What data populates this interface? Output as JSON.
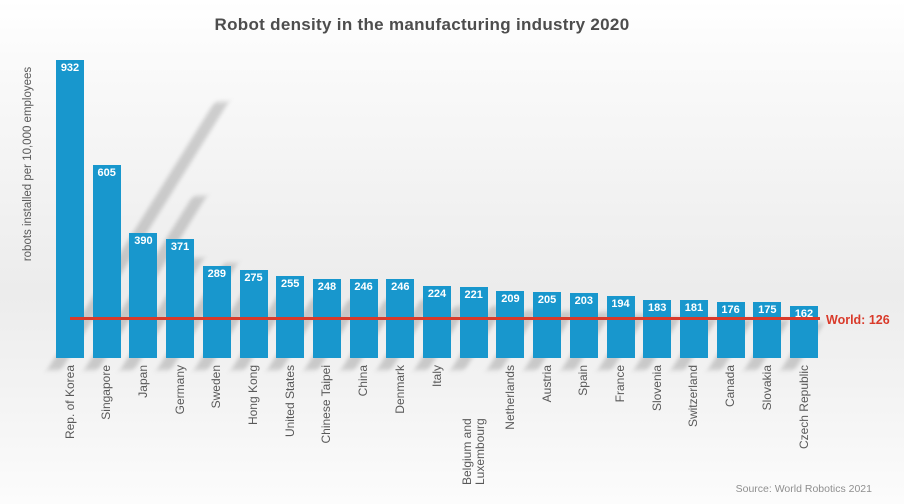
{
  "slide": {
    "title": "Robot density in the manufacturing industry 2020",
    "y_axis_label": "robots installed per 10,000 employees",
    "source": "Source: World Robotics 2021"
  },
  "world_line": {
    "label": "World: 126",
    "value": 126
  },
  "colors": {
    "bar": "#1897cd",
    "bar_value_text": "#ffffff",
    "world_line": "#d93a2a",
    "title_text": "#4d4d4d",
    "axis_text": "#595959",
    "source_text": "#8f8f8f"
  },
  "chart_data": {
    "type": "bar",
    "title": "Robot density in the manufacturing industry 2020",
    "xlabel": "",
    "ylabel": "robots installed per 10,000 employees",
    "ylim": [
      0,
      932
    ],
    "grid": false,
    "legend": "none",
    "bar_color": "#1897cd",
    "categories": [
      "Rep. of Korea",
      "Singapore",
      "Japan",
      "Germany",
      "Sweden",
      "Hong Kong",
      "United States",
      "Chinese Taipei",
      "China",
      "Denmark",
      "Italy",
      "Belgium and Luxembourg",
      "Netherlands",
      "Austria",
      "Spain",
      "France",
      "Slovenia",
      "Switzerland",
      "Canada",
      "Slovakia",
      "Czech Republic"
    ],
    "values": [
      932,
      605,
      390,
      371,
      289,
      275,
      255,
      248,
      246,
      246,
      224,
      221,
      209,
      205,
      203,
      194,
      183,
      181,
      176,
      175,
      162
    ],
    "annotations": [
      {
        "type": "hline",
        "value": 126,
        "label": "World: 126",
        "color": "#d93a2a"
      }
    ],
    "source": "Source: World Robotics 2021"
  }
}
